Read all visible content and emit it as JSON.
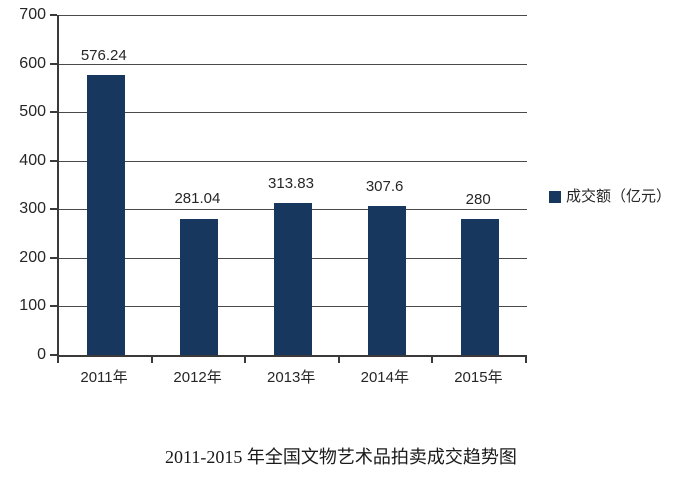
{
  "chart_data": {
    "type": "bar",
    "title": "2011-2015 年全国文物艺术品拍卖成交趋势图",
    "legend": "成交额（亿元）",
    "categories": [
      "2011年",
      "2012年",
      "2013年",
      "2014年",
      "2015年"
    ],
    "values": [
      576.24,
      281.04,
      313.83,
      307.6,
      280
    ],
    "value_labels": [
      "576.24",
      "281.04",
      "313.83",
      "307.6",
      "280"
    ],
    "ylim": [
      0,
      700
    ],
    "ytick_step": 100,
    "ytick_labels": [
      "0",
      "100",
      "200",
      "300",
      "400",
      "500",
      "600",
      "700"
    ],
    "grid": true,
    "legend_position": "right",
    "bar_color": "#17375E",
    "axis_color": "#3a3a3a",
    "text_color": "#262626",
    "background": "#ffffff"
  }
}
